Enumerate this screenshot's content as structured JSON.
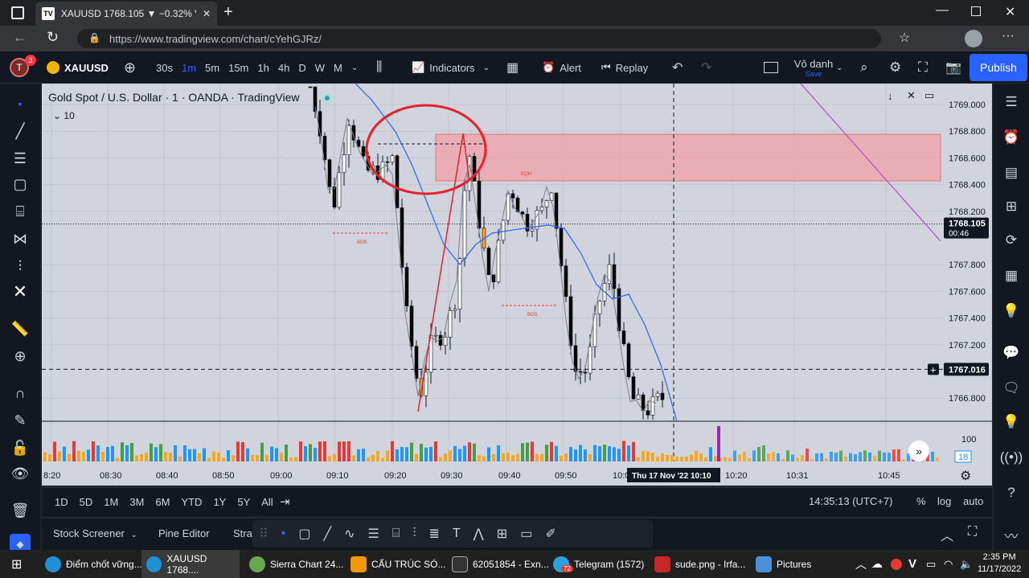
{
  "browser": {
    "tab_title": "XAUUSD 1768.105 ▼ −0.32% Vô",
    "url": "https://www.tradingview.com/chart/cYehGJRz/"
  },
  "toolbar": {
    "avatar_letter": "T",
    "notification_count": "3",
    "symbol": "XAUUSD",
    "intervals": [
      "30s",
      "1m",
      "5m",
      "15m",
      "1h",
      "4h",
      "D",
      "W",
      "M"
    ],
    "active_interval": "1m",
    "indicators": "Indicators",
    "alert": "Alert",
    "replay": "Replay",
    "layout_name": "Vô danh",
    "layout_sub": "Save",
    "publish": "Publish"
  },
  "chart": {
    "legend": "Gold Spot / U.S. Dollar · 1 · OANDA · TradingView",
    "volume_label": "10",
    "price_ticks": [
      "1769.000",
      "1768.800",
      "1768.600",
      "1768.400",
      "1768.200",
      "1767.800",
      "1767.600",
      "1767.400",
      "1767.200",
      "1766.800"
    ],
    "current_price": "1768.105",
    "countdown": "00:46",
    "crosshair_price": "1767.016",
    "time_ticks": [
      "8:20",
      "08:30",
      "08:40",
      "08:50",
      "09:00",
      "09:10",
      "09:20",
      "09:30",
      "09:40",
      "09:50",
      "10:00",
      "10:20",
      "10:31",
      "10:45"
    ],
    "crosshair_time": "Thu 17 Nov '22  10:10",
    "annotations": [
      "EQH",
      "BOS",
      "BOS"
    ],
    "volume_scale": "100",
    "volume_badge": "18",
    "colors": {
      "zone": "#f0a0a8",
      "circle": "#e8202a",
      "ma": "#2962ff",
      "up": "#26a69a",
      "down": "#000000"
    }
  },
  "bottom": {
    "ranges": [
      "1D",
      "5D",
      "1M",
      "3M",
      "6M",
      "YTD",
      "1Y",
      "5Y",
      "All"
    ],
    "clock": "14:35:13 (UTC+7)",
    "percent": "%",
    "log": "log",
    "auto": "auto"
  },
  "panels": [
    "Stock Screener",
    "Pine Editor",
    "Stra"
  ],
  "taskbar": {
    "items": [
      "Điểm chốt vững...",
      "XAUUSD 1768....",
      "Sierra Chart 24...",
      "CẤU TRÚC SÓ...",
      "62051854 - Exn...",
      "Telegram (1572)",
      "sude.png - Irfa...",
      "Pictures"
    ],
    "telegram_badge": "72",
    "time": "2:35 PM",
    "date": "11/17/2022"
  }
}
